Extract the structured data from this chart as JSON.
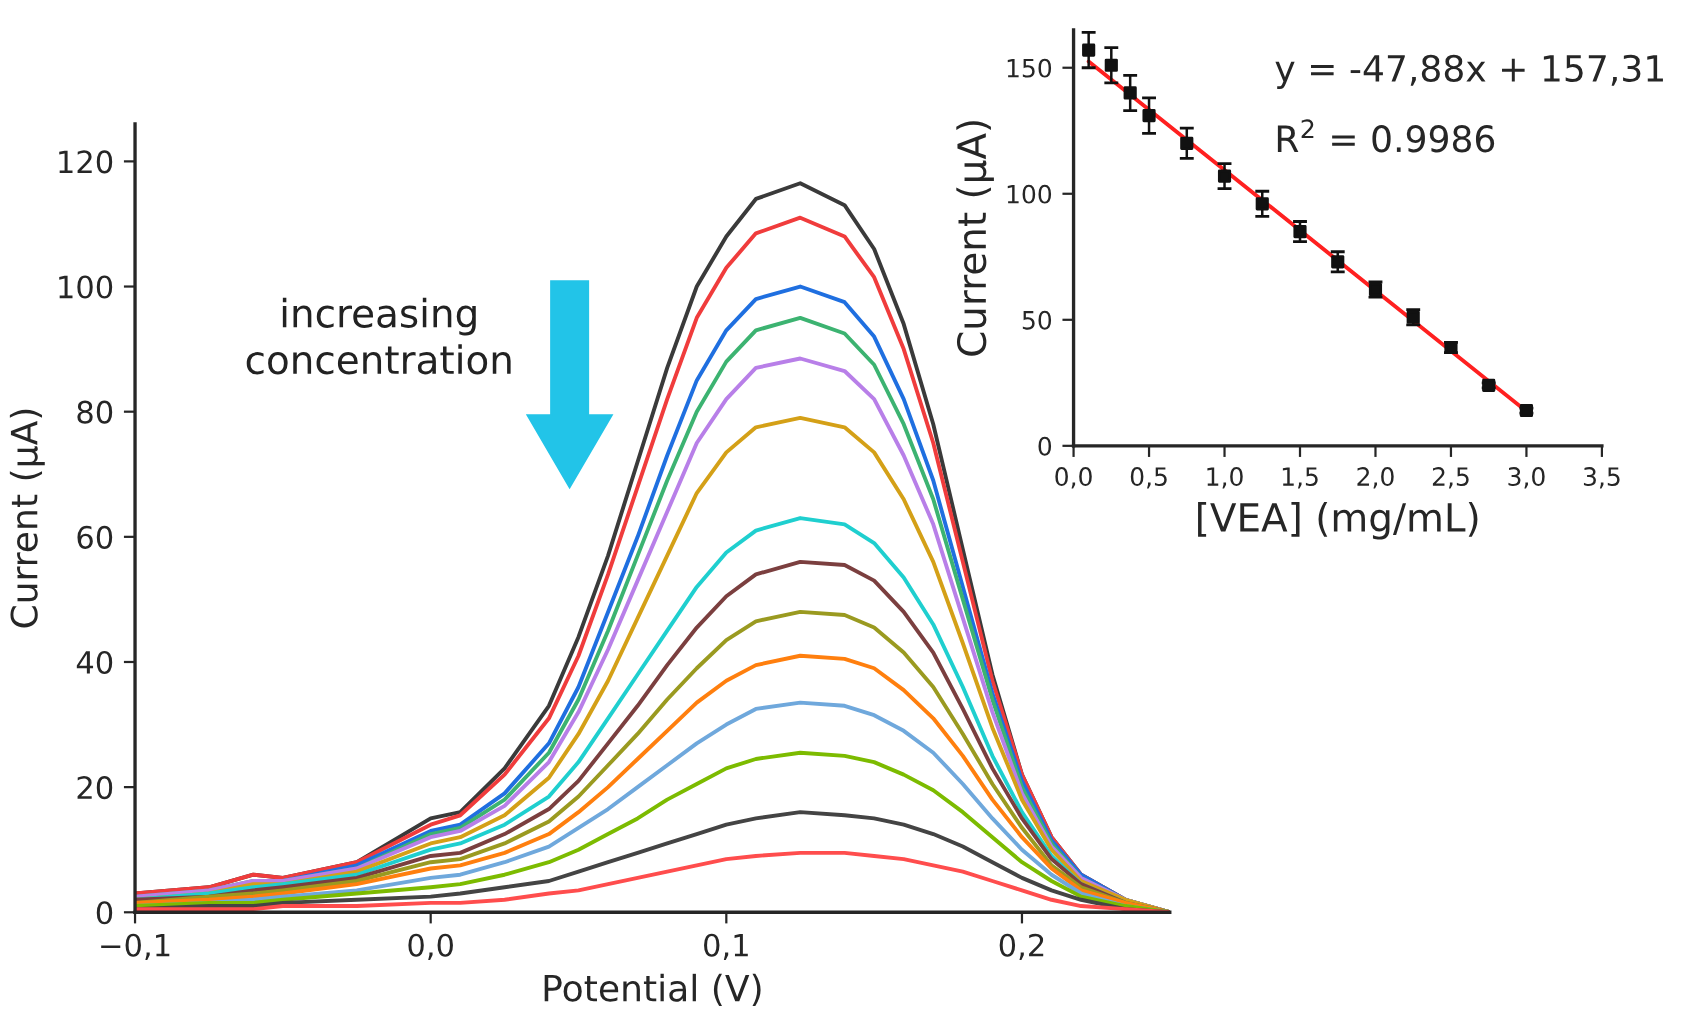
{
  "chart_data": [
    {
      "type": "line",
      "xlabel": "Potential (V)",
      "ylabel": "Current (µA)",
      "xlim": [
        -0.1,
        0.25
      ],
      "ylim": [
        0,
        126
      ],
      "xticks": [
        {
          "value": -0.1,
          "label": "−0,1"
        },
        {
          "value": 0.0,
          "label": "0,0"
        },
        {
          "value": 0.1,
          "label": "0,1"
        },
        {
          "value": 0.2,
          "label": "0,2"
        }
      ],
      "yticks": [
        0,
        20,
        40,
        60,
        80,
        100,
        120
      ],
      "grid": false,
      "line_style": "solid",
      "annotations": [
        "increasing concentration"
      ],
      "x": [
        -0.1,
        -0.075,
        -0.06,
        -0.05,
        -0.025,
        0,
        0.01,
        0.025,
        0.04,
        0.05,
        0.06,
        0.07,
        0.08,
        0.09,
        0.1,
        0.11,
        0.125,
        0.14,
        0.15,
        0.16,
        0.17,
        0.18,
        0.19,
        0.2,
        0.21,
        0.22,
        0.235,
        0.25
      ],
      "series": [
        {
          "color": "#3a3a3a",
          "values": [
            3,
            4,
            6,
            5.5,
            8,
            15,
            16,
            23,
            33,
            44,
            57,
            72,
            87,
            100,
            108,
            114,
            116.5,
            113,
            106,
            94,
            78,
            58,
            38,
            22,
            12,
            6,
            2,
            0
          ]
        },
        {
          "color": "#f03c3c",
          "values": [
            3,
            4,
            6,
            5.5,
            8,
            14,
            15.5,
            22,
            31,
            41,
            54,
            68,
            82,
            95,
            103,
            108.5,
            111,
            108,
            101.5,
            90,
            75,
            56,
            37,
            22,
            12,
            6,
            2,
            0
          ]
        },
        {
          "color": "#1f6fe0",
          "values": [
            null,
            null,
            5,
            5,
            7.5,
            13,
            14,
            19,
            27,
            36,
            48,
            60,
            73,
            85,
            93,
            98,
            100,
            97.5,
            92,
            82,
            69,
            52,
            35,
            21,
            11.5,
            6,
            2,
            0
          ]
        },
        {
          "color": "#3cb371",
          "values": [
            2.5,
            3.5,
            5,
            5,
            7,
            12.5,
            13.5,
            18,
            25.5,
            34,
            45,
            57,
            69,
            80,
            88,
            93,
            95,
            92.5,
            87.5,
            78,
            66,
            50,
            34,
            20,
            11,
            5.5,
            2,
            0
          ]
        },
        {
          "color": "#b87fe8",
          "values": [
            2.5,
            3.5,
            5,
            5,
            7,
            12,
            13,
            17,
            24,
            32,
            42,
            53,
            64,
            75,
            82,
            87,
            88.5,
            86.5,
            82,
            73,
            62,
            47,
            32,
            19,
            10.5,
            5.5,
            2,
            0
          ]
        },
        {
          "color": "#d4a017",
          "values": [
            2,
            3,
            4.5,
            4.5,
            6.5,
            11,
            12,
            15.5,
            21.5,
            28.5,
            37,
            47,
            57,
            67,
            73.5,
            77.5,
            79,
            77.5,
            73.5,
            66,
            56,
            43,
            29.5,
            18,
            10,
            5,
            2,
            0
          ]
        },
        {
          "color": "#1fcfcf",
          "values": [
            2,
            3,
            4,
            4.5,
            6,
            10,
            11,
            14,
            18.5,
            24,
            31,
            38,
            45,
            52,
            57.5,
            61,
            63,
            62,
            59,
            53.5,
            46,
            36,
            25,
            16,
            9,
            4.5,
            1.5,
            0
          ]
        },
        {
          "color": "#7b3f3f",
          "values": [
            2,
            2.5,
            3.5,
            4,
            5.5,
            9,
            9.5,
            12.5,
            16.5,
            21,
            27,
            33,
            39.5,
            45.5,
            50.5,
            54,
            56,
            55.5,
            53,
            48,
            41.5,
            32.5,
            23,
            15,
            8.5,
            4.5,
            1.5,
            0
          ]
        },
        {
          "color": "#9a9a20",
          "values": [
            1.5,
            2.5,
            3,
            3.5,
            5,
            8,
            8.5,
            11,
            14.5,
            18.5,
            23.5,
            28.5,
            34,
            39,
            43.5,
            46.5,
            48,
            47.5,
            45.5,
            41.5,
            36,
            28.5,
            20.5,
            13.5,
            7.5,
            4,
            1.5,
            0
          ]
        },
        {
          "color": "#ff7f0e",
          "values": [
            1.5,
            2,
            2.5,
            3,
            4.5,
            7,
            7.5,
            9.5,
            12.5,
            16,
            20,
            24.5,
            29,
            33.5,
            37,
            39.5,
            41,
            40.5,
            39,
            35.5,
            31,
            25,
            18,
            12,
            7,
            3.5,
            1.5,
            0
          ]
        },
        {
          "color": "#6fa8dc",
          "values": [
            1,
            1.5,
            2,
            2.5,
            3.5,
            5.5,
            6,
            8,
            10.5,
            13.5,
            16.5,
            20,
            23.5,
            27,
            30,
            32.5,
            33.5,
            33,
            31.5,
            29,
            25.5,
            20.5,
            15,
            10,
            6,
            3,
            1,
            0
          ]
        },
        {
          "color": "#7cbb00",
          "values": [
            1,
            1.5,
            1.5,
            2,
            3,
            4,
            4.5,
            6,
            8,
            10,
            12.5,
            15,
            18,
            20.5,
            23,
            24.5,
            25.5,
            25,
            24,
            22,
            19.5,
            16,
            12,
            8,
            5,
            2.5,
            1,
            0
          ]
        },
        {
          "color": "#444444",
          "values": [
            0.5,
            1,
            1,
            1.5,
            2,
            2.5,
            3,
            4,
            5,
            6.5,
            8,
            9.5,
            11,
            12.5,
            14,
            15,
            16,
            15.5,
            15,
            14,
            12.5,
            10.5,
            8,
            5.5,
            3.5,
            2,
            0.5,
            0
          ]
        },
        {
          "color": "#ff4d4d",
          "values": [
            0.5,
            0.5,
            0.5,
            1,
            1,
            1.5,
            1.5,
            2,
            3,
            3.5,
            4.5,
            5.5,
            6.5,
            7.5,
            8.5,
            9,
            9.5,
            9.5,
            9,
            8.5,
            7.5,
            6.5,
            5,
            3.5,
            2,
            1,
            0.5,
            0
          ]
        }
      ]
    },
    {
      "type": "scatter",
      "xlabel": "[VEA] (mg/mL)",
      "ylabel": "Current (µA)",
      "xlim": [
        0,
        3.5
      ],
      "ylim": [
        0,
        165
      ],
      "xticks": [
        {
          "value": 0,
          "label": "0,0"
        },
        {
          "value": 0.5,
          "label": "0,5"
        },
        {
          "value": 1,
          "label": "1,0"
        },
        {
          "value": 1.5,
          "label": "1,5"
        },
        {
          "value": 2,
          "label": "2,0"
        },
        {
          "value": 2.5,
          "label": "2,5"
        },
        {
          "value": 3,
          "label": "3,0"
        },
        {
          "value": 3.5,
          "label": "3,5"
        }
      ],
      "yticks": [
        0,
        50,
        100,
        150
      ],
      "grid": false,
      "annotations": [
        "y = -47,88x + 157,31",
        "R$^{2}$ = 0.9986"
      ],
      "series": [
        {
          "type": "scatter",
          "marker": "square",
          "color": "#111111",
          "x": [
            0.1,
            0.25,
            0.375,
            0.5,
            0.75,
            1,
            1.25,
            1.5,
            1.75,
            2,
            2.25,
            2.5,
            2.75,
            3
          ],
          "values": [
            157,
            151,
            140,
            131,
            120,
            107,
            96,
            85,
            73,
            62,
            51,
            39,
            24,
            14
          ],
          "errors": [
            7,
            7,
            7,
            7,
            6,
            5,
            5,
            4,
            4,
            3,
            3,
            2,
            1,
            1
          ]
        },
        {
          "type": "line",
          "color": "#ff2020",
          "x": [
            0.1,
            3.0
          ],
          "values": [
            152.5,
            13.7
          ]
        }
      ]
    }
  ]
}
